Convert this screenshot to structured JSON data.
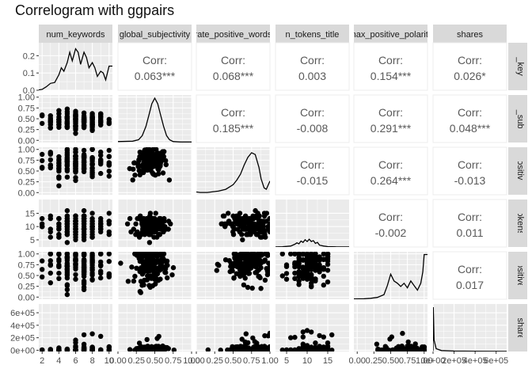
{
  "title": "Correlogram with ggpairs",
  "variables": [
    "num_keywords",
    "global_subjectivity",
    "rate_positive_words",
    "n_tokens_title",
    "max_positive_polarity",
    "shares"
  ],
  "chart_data": {
    "type": "scatter",
    "title": "Correlogram with ggpairs",
    "layout": "pairs-matrix",
    "variables": [
      "num_keywords",
      "global_subjectivity",
      "rate_positive_words",
      "n_tokens_title",
      "max_positive_polarity",
      "shares"
    ],
    "x_ranges": [
      [
        1.6,
        10.4
      ],
      [
        0,
        1
      ],
      [
        0,
        1
      ],
      [
        2.3,
        20.2
      ],
      [
        -0.05,
        1.05
      ],
      [
        0,
        700000
      ]
    ],
    "x_ticks": [
      [
        {
          "v": 2,
          "label": "2"
        },
        {
          "v": 4,
          "label": "4"
        },
        {
          "v": 6,
          "label": "6"
        },
        {
          "v": 8,
          "label": "8"
        },
        {
          "v": 10,
          "label": "10"
        }
      ],
      [
        {
          "v": 0,
          "label": "0.00"
        },
        {
          "v": 0.25,
          "label": "0.25"
        },
        {
          "v": 0.5,
          "label": "0.50"
        },
        {
          "v": 0.75,
          "label": "0.75"
        },
        {
          "v": 1,
          "label": "1.00"
        }
      ],
      [
        {
          "v": 0,
          "label": "0.00"
        },
        {
          "v": 0.25,
          "label": "0.25"
        },
        {
          "v": 0.5,
          "label": "0.50"
        },
        {
          "v": 0.75,
          "label": "0.75"
        },
        {
          "v": 1,
          "label": "1.00"
        }
      ],
      [
        {
          "v": 5,
          "label": "5"
        },
        {
          "v": 10,
          "label": "10"
        },
        {
          "v": 15,
          "label": "15"
        }
      ],
      [
        {
          "v": 0,
          "label": "0.00"
        },
        {
          "v": 0.25,
          "label": "0.25"
        },
        {
          "v": 0.5,
          "label": "0.50"
        },
        {
          "v": 0.75,
          "label": "0.75"
        },
        {
          "v": 1,
          "label": "1.00"
        }
      ],
      [
        {
          "v": 0,
          "label": "0e+00"
        },
        {
          "v": 200000,
          "label": "2e+05"
        },
        {
          "v": 400000,
          "label": "4e+05"
        },
        {
          "v": 600000,
          "label": "6e+05"
        }
      ]
    ],
    "y_axes": [
      {
        "range": [
          0,
          0.275
        ],
        "ticks": [
          {
            "v": 0,
            "label": "0.0"
          },
          {
            "v": 0.1,
            "label": "0.1"
          },
          {
            "v": 0.2,
            "label": "0.2"
          }
        ]
      },
      {
        "range": [
          -0.05,
          1.05
        ],
        "ticks": [
          {
            "v": 0,
            "label": "0.00"
          },
          {
            "v": 0.25,
            "label": "0.25"
          },
          {
            "v": 0.5,
            "label": "0.50"
          },
          {
            "v": 0.75,
            "label": "0.75"
          },
          {
            "v": 1,
            "label": "1.00"
          }
        ]
      },
      {
        "range": [
          -0.05,
          1.05
        ],
        "ticks": [
          {
            "v": 0,
            "label": "0.00"
          },
          {
            "v": 0.25,
            "label": "0.25"
          },
          {
            "v": 0.5,
            "label": "0.50"
          },
          {
            "v": 0.75,
            "label": "0.75"
          },
          {
            "v": 1,
            "label": "1.00"
          }
        ]
      },
      {
        "range": [
          2.3,
          20.2
        ],
        "ticks": [
          {
            "v": 5,
            "label": "5"
          },
          {
            "v": 10,
            "label": "10"
          },
          {
            "v": 15,
            "label": "15"
          }
        ]
      },
      {
        "range": [
          -0.05,
          1.05
        ],
        "ticks": [
          {
            "v": 0,
            "label": "0.00"
          },
          {
            "v": 0.25,
            "label": "0.25"
          },
          {
            "v": 0.5,
            "label": "0.50"
          },
          {
            "v": 0.75,
            "label": "0.75"
          },
          {
            "v": 1,
            "label": "1.00"
          }
        ]
      },
      {
        "range": [
          -20000,
          740000
        ],
        "ticks": [
          {
            "v": 0,
            "label": "0e+00"
          },
          {
            "v": 200000,
            "label": "2e+05"
          },
          {
            "v": 400000,
            "label": "4e+05"
          },
          {
            "v": 600000,
            "label": "6e+05"
          }
        ]
      }
    ],
    "correlations": [
      {
        "row": 0,
        "col": 1,
        "label": "Corr:",
        "value": "0.063***"
      },
      {
        "row": 0,
        "col": 2,
        "label": "Corr:",
        "value": "0.068***"
      },
      {
        "row": 0,
        "col": 3,
        "label": "Corr:",
        "value": "0.003"
      },
      {
        "row": 0,
        "col": 4,
        "label": "Corr:",
        "value": "0.154***"
      },
      {
        "row": 0,
        "col": 5,
        "label": "Corr:",
        "value": "0.026*"
      },
      {
        "row": 1,
        "col": 2,
        "label": "Corr:",
        "value": "0.185***"
      },
      {
        "row": 1,
        "col": 3,
        "label": "Corr:",
        "value": "-0.008"
      },
      {
        "row": 1,
        "col": 4,
        "label": "Corr:",
        "value": "0.291***"
      },
      {
        "row": 1,
        "col": 5,
        "label": "Corr:",
        "value": "0.048***"
      },
      {
        "row": 2,
        "col": 3,
        "label": "Corr:",
        "value": "-0.015"
      },
      {
        "row": 2,
        "col": 4,
        "label": "Corr:",
        "value": "0.264***"
      },
      {
        "row": 2,
        "col": 5,
        "label": "Corr:",
        "value": "-0.013"
      },
      {
        "row": 3,
        "col": 4,
        "label": "Corr:",
        "value": "-0.002"
      },
      {
        "row": 3,
        "col": 5,
        "label": "Corr:",
        "value": "0.011"
      },
      {
        "row": 4,
        "col": 5,
        "label": "Corr:",
        "value": "0.017"
      }
    ],
    "densities": [
      {
        "var": "num_keywords",
        "x": [
          1.6,
          2,
          2.5,
          3,
          3.5,
          4,
          4.3,
          4.6,
          5,
          5.3,
          5.6,
          6,
          6.3,
          6.6,
          7,
          7.3,
          7.6,
          8,
          8.3,
          8.6,
          9,
          9.3,
          9.6,
          10,
          10.4
        ],
        "y": [
          0.002,
          0.005,
          0.02,
          0.04,
          0.045,
          0.09,
          0.13,
          0.11,
          0.16,
          0.22,
          0.17,
          0.24,
          0.22,
          0.15,
          0.22,
          0.19,
          0.13,
          0.16,
          0.13,
          0.08,
          0.11,
          0.1,
          0.06,
          0.14,
          0.14
        ]
      },
      {
        "var": "global_subjectivity",
        "x": [
          0,
          0.2,
          0.28,
          0.33,
          0.38,
          0.42,
          0.46,
          0.5,
          0.54,
          0.58,
          0.62,
          0.66,
          0.7,
          0.75,
          0.85,
          1
        ],
        "y": [
          0.02,
          0.03,
          0.06,
          0.15,
          0.35,
          0.6,
          0.85,
          0.97,
          0.85,
          0.6,
          0.35,
          0.15,
          0.06,
          0.02,
          0.01,
          0.01
        ]
      },
      {
        "var": "rate_positive_words",
        "x": [
          0,
          0.05,
          0.15,
          0.3,
          0.4,
          0.5,
          0.55,
          0.6,
          0.65,
          0.7,
          0.75,
          0.8,
          0.85,
          0.88,
          0.92,
          0.95,
          1
        ],
        "y": [
          0.06,
          0.05,
          0.05,
          0.08,
          0.12,
          0.22,
          0.32,
          0.45,
          0.65,
          0.82,
          0.92,
          0.88,
          0.6,
          0.35,
          0.15,
          0.12,
          0.3
        ]
      },
      {
        "var": "n_tokens_title",
        "x": [
          2.3,
          4,
          6,
          7,
          7.5,
          8,
          8.5,
          9,
          9.5,
          10,
          10.5,
          11,
          11.5,
          12,
          12.5,
          13,
          14,
          15,
          17,
          20.2
        ],
        "y": [
          0.002,
          0.005,
          0.02,
          0.06,
          0.09,
          0.07,
          0.13,
          0.1,
          0.16,
          0.12,
          0.17,
          0.12,
          0.14,
          0.08,
          0.1,
          0.04,
          0.02,
          0.008,
          0.003,
          0.001
        ]
      },
      {
        "var": "max_positive_polarity",
        "x": [
          -0.05,
          0.1,
          0.2,
          0.3,
          0.4,
          0.45,
          0.5,
          0.55,
          0.6,
          0.65,
          0.7,
          0.75,
          0.8,
          0.85,
          0.9,
          0.95,
          0.98,
          1,
          1.05
        ],
        "y": [
          0.005,
          0.01,
          0.02,
          0.04,
          0.1,
          0.3,
          0.55,
          0.4,
          0.35,
          0.28,
          0.35,
          0.25,
          0.4,
          0.3,
          0.2,
          0.35,
          0.6,
          0.98,
          0.98
        ]
      },
      {
        "var": "shares",
        "x": [
          0,
          2000,
          5000,
          10000,
          30000,
          80000,
          200000,
          400000,
          700000
        ],
        "y": [
          0.01,
          0.97,
          0.7,
          0.25,
          0.06,
          0.02,
          0.01,
          0.005,
          0.003
        ]
      }
    ]
  }
}
